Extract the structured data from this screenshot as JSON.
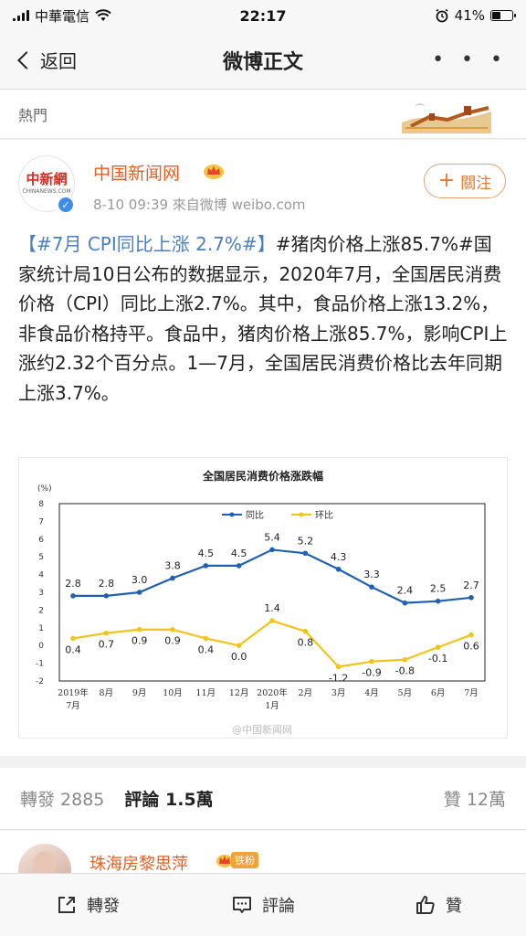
{
  "status_bar": {
    "carrier": "中華電信",
    "time": "22:17",
    "battery_percent": "41%",
    "battery_level": 0.41
  },
  "nav": {
    "back_label": "返回",
    "title": "微博正文",
    "more_label": "• • •"
  },
  "hot_strip": {
    "label": "熱門"
  },
  "post": {
    "author": "中国新闻网",
    "avatar_text": "中新網",
    "avatar_subtext": "CHINANEWS.COM",
    "meta": "8-10 09:39  來自微博 weibo.com",
    "follow_label": "關注",
    "text_topic": "【#7月 CPI同比上涨 2.7%#】",
    "text_body": "#猪肉价格上涨85.7%#国家统计局10日公布的数据显示，2020年7月，全国居民消费价格（CPI）同比上涨2.7%。其中，食品价格上涨13.2%，非食品价格持平。食品中，猪肉价格上涨85.7%，影响CPI上涨约2.32个百分点。1—7月，全国居民消费价格比去年同期上涨3.7%。",
    "watermark": "@中国新闻网"
  },
  "chart_data": {
    "type": "line",
    "title": "全国居民消费价格涨跌幅",
    "ylabel": "(%)",
    "categories": [
      "2019年\n7月",
      "8月",
      "9月",
      "10月",
      "11月",
      "12月",
      "2020年\n1月",
      "2月",
      "3月",
      "4月",
      "5月",
      "6月",
      "7月"
    ],
    "ylim": [
      -2,
      8
    ],
    "yticks": [
      -2,
      -1,
      0,
      1,
      2,
      3,
      4,
      5,
      6,
      7,
      8
    ],
    "grid": false,
    "legend_placement": "top-center",
    "series": [
      {
        "name": "同比",
        "color": "#1f5fb4",
        "values": [
          2.8,
          2.8,
          3.0,
          3.8,
          4.5,
          4.5,
          5.4,
          5.2,
          4.3,
          3.3,
          2.4,
          2.5,
          2.7
        ],
        "labels": [
          "2.8",
          "2.8",
          "3.0",
          "3.8",
          "4.5",
          "4.5",
          "5.4",
          "5.2",
          "4.3",
          "3.3",
          "2.4",
          "2.5",
          "2.7"
        ]
      },
      {
        "name": "环比",
        "color": "#f2c318",
        "values": [
          0.4,
          0.7,
          0.9,
          0.9,
          0.4,
          0.0,
          1.4,
          0.8,
          -1.2,
          -0.9,
          -0.8,
          -0.1,
          0.6
        ],
        "labels": [
          "0.4",
          "0.7",
          "0.9",
          "0.9",
          "0.4",
          "0.0",
          "1.4",
          "0.8",
          "-1.2",
          "-0.9",
          "-0.8",
          "-0.1",
          "0.6"
        ]
      }
    ]
  },
  "stats": {
    "repost": "轉發 2885",
    "comments": "評論 1.5萬",
    "likes": "贊 12萬"
  },
  "comment": {
    "name": "珠海房黎思萍",
    "badge": "铁粉"
  },
  "toolbar": {
    "repost": "轉發",
    "comment": "評論",
    "like": "贊"
  }
}
